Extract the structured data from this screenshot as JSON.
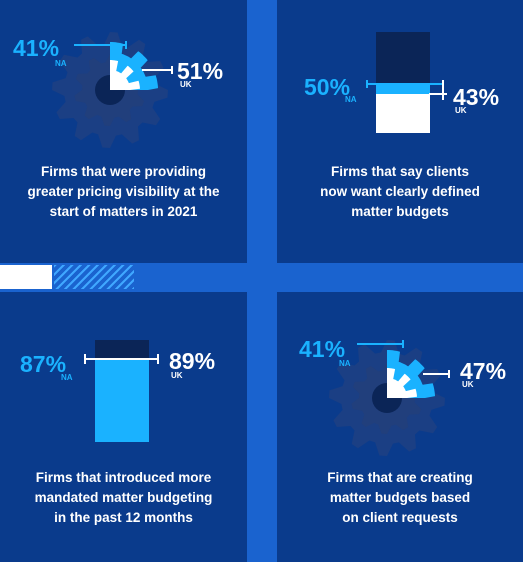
{
  "colors": {
    "background": "#1a63cf",
    "panel": "#0a3b8c",
    "cyan": "#1ab2ff",
    "white": "#ffffff",
    "dark": "#0b2557"
  },
  "chart_data": [
    {
      "type": "gear-comparison",
      "series": [
        {
          "name": "NA",
          "value": 41
        },
        {
          "name": "UK",
          "value": 51
        }
      ],
      "values_label": {
        "na": "41%",
        "uk": "51%"
      },
      "caption": [
        "Firms that were providing",
        "greater pricing visibility at the",
        "start of matters in 2021"
      ]
    },
    {
      "type": "bar",
      "series": [
        {
          "name": "NA",
          "value": 50
        },
        {
          "name": "UK",
          "value": 43
        }
      ],
      "values_label": {
        "na": "50%",
        "uk": "43%"
      },
      "caption": [
        "Firms that say clients",
        "now want clearly defined",
        "matter budgets"
      ]
    },
    {
      "type": "bar",
      "series": [
        {
          "name": "NA",
          "value": 87
        },
        {
          "name": "UK",
          "value": 89
        }
      ],
      "values_label": {
        "na": "87%",
        "uk": "89%"
      },
      "caption": [
        "Firms that introduced more",
        "mandated matter budgeting",
        "in the past 12 months"
      ]
    },
    {
      "type": "gear-comparison",
      "series": [
        {
          "name": "NA",
          "value": 41
        },
        {
          "name": "UK",
          "value": 47
        }
      ],
      "values_label": {
        "na": "41%",
        "uk": "47%"
      },
      "caption": [
        "Firms that are creating",
        "matter budgets based",
        "on client requests"
      ]
    }
  ],
  "labels": {
    "na": "NA",
    "uk": "UK"
  }
}
